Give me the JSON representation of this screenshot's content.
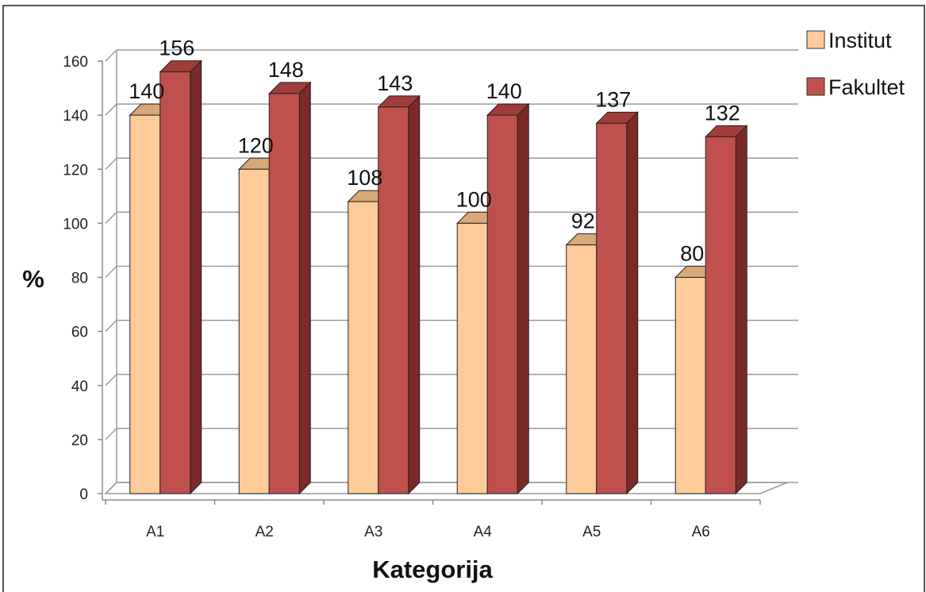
{
  "chart_data": {
    "type": "bar",
    "categories": [
      "A1",
      "A2",
      "A3",
      "A4",
      "A5",
      "A6"
    ],
    "series": [
      {
        "name": "Institut",
        "values": [
          140,
          120,
          108,
          100,
          92,
          80
        ],
        "color": "#FFCC99",
        "side_color": "#E0A070",
        "top_color": "#D8A878"
      },
      {
        "name": "Fakultet",
        "values": [
          156,
          148,
          143,
          140,
          137,
          132
        ],
        "color": "#C0504D",
        "side_color": "#7A2A28",
        "top_color": "#A03C39"
      }
    ],
    "ylim": [
      0,
      160
    ],
    "yticks": [
      "0",
      "20",
      "40",
      "60",
      "80",
      "100",
      "120",
      "140",
      "160"
    ],
    "xlabel": "Kategorija",
    "ylabel": "%",
    "title": "",
    "grid": true,
    "legend": "right"
  },
  "colors": {
    "grid": "#999999",
    "axis": "#888888"
  }
}
